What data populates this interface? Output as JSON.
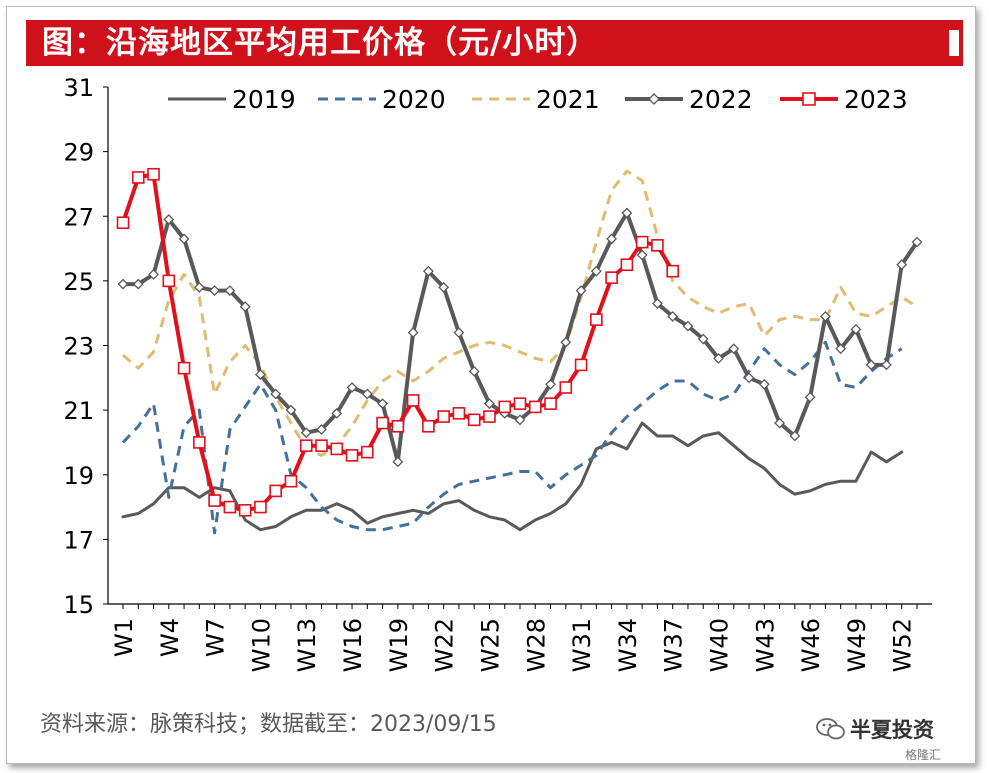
{
  "title": "图：沿海地区平均用工价格（元/小时）",
  "source": "资料来源：脉策科技；数据截至：2023/09/15",
  "watermark": {
    "brand": "半夏投资",
    "sub": "格隆汇"
  },
  "chart_data": {
    "type": "line",
    "title": "图：沿海地区平均用工价格（元/小时）",
    "ylim": [
      15,
      31
    ],
    "yticks": [
      15,
      17,
      19,
      21,
      23,
      25,
      27,
      29,
      31
    ],
    "x": [
      1,
      2,
      3,
      4,
      5,
      6,
      7,
      8,
      9,
      10,
      11,
      12,
      13,
      14,
      15,
      16,
      17,
      18,
      19,
      20,
      21,
      22,
      23,
      24,
      25,
      26,
      27,
      28,
      29,
      30,
      31,
      32,
      33,
      34,
      35,
      36,
      37,
      38,
      39,
      40,
      41,
      42,
      43,
      44,
      45,
      46,
      47,
      48,
      49,
      50,
      51,
      52,
      53
    ],
    "xticks": [
      "W1",
      "W4",
      "W7",
      "W10",
      "W13",
      "W16",
      "W19",
      "W22",
      "W25",
      "W28",
      "W31",
      "W34",
      "W37",
      "W40",
      "W43",
      "W46",
      "W49",
      "W52"
    ],
    "xtick_positions": [
      1,
      4,
      7,
      10,
      13,
      16,
      19,
      22,
      25,
      28,
      31,
      34,
      37,
      40,
      43,
      46,
      49,
      52
    ],
    "legend_position": "top",
    "series": [
      {
        "name": "2019",
        "color": "#595959",
        "style": "solid",
        "marker": "none",
        "width": 3,
        "values": [
          17.7,
          17.8,
          18.1,
          18.6,
          18.6,
          18.3,
          18.6,
          18.5,
          17.6,
          17.3,
          17.4,
          17.7,
          17.9,
          17.9,
          18.1,
          17.9,
          17.5,
          17.7,
          17.8,
          17.9,
          17.8,
          18.1,
          18.2,
          17.9,
          17.7,
          17.6,
          17.3,
          17.6,
          17.8,
          18.1,
          18.7,
          19.8,
          20.0,
          19.8,
          20.6,
          20.2,
          20.2,
          19.9,
          20.2,
          20.3,
          19.9,
          19.5,
          19.2,
          18.7,
          18.4,
          18.5,
          18.7,
          18.8,
          18.8,
          19.7,
          19.4,
          19.7,
          null
        ]
      },
      {
        "name": "2020",
        "color": "#44709a",
        "style": "dashed",
        "marker": "none",
        "width": 3,
        "values": [
          20.0,
          20.5,
          21.2,
          18.3,
          20.5,
          21.0,
          17.2,
          20.4,
          21.1,
          21.8,
          21.0,
          19.0,
          18.6,
          18.0,
          17.6,
          17.4,
          17.3,
          17.3,
          17.4,
          17.5,
          18.0,
          18.4,
          18.7,
          18.8,
          18.9,
          19.0,
          19.1,
          19.1,
          18.6,
          19.0,
          19.3,
          19.6,
          20.3,
          20.8,
          21.2,
          21.6,
          21.9,
          21.9,
          21.5,
          21.3,
          21.5,
          22.2,
          22.9,
          22.4,
          22.1,
          22.5,
          23.1,
          21.8,
          21.7,
          22.2,
          22.6,
          22.9,
          null
        ]
      },
      {
        "name": "2021",
        "color": "#e2bb72",
        "style": "dashed",
        "marker": "none",
        "width": 3,
        "values": [
          22.7,
          22.3,
          22.8,
          24.4,
          25.2,
          24.5,
          21.5,
          22.5,
          23.0,
          22.4,
          21.4,
          20.6,
          19.8,
          19.6,
          19.9,
          20.5,
          21.3,
          21.9,
          22.2,
          21.9,
          22.2,
          22.6,
          22.8,
          23.0,
          23.1,
          23.0,
          22.8,
          22.6,
          22.5,
          23.0,
          24.5,
          26.2,
          27.8,
          28.4,
          28.1,
          26.4,
          25.0,
          24.5,
          24.2,
          24.0,
          24.2,
          24.3,
          23.3,
          23.8,
          23.9,
          23.8,
          23.8,
          24.8,
          24.0,
          23.9,
          24.2,
          24.5,
          24.2
        ]
      },
      {
        "name": "2022",
        "color": "#595959",
        "style": "solid",
        "marker": "diamond",
        "width": 4,
        "values": [
          24.9,
          24.9,
          25.2,
          26.9,
          26.3,
          24.8,
          24.7,
          24.7,
          24.2,
          22.1,
          21.5,
          21.0,
          20.3,
          20.4,
          20.9,
          21.7,
          21.5,
          21.2,
          19.4,
          23.4,
          25.3,
          24.8,
          23.4,
          22.2,
          21.2,
          20.9,
          20.7,
          21.1,
          21.8,
          23.1,
          24.7,
          25.3,
          26.3,
          27.1,
          25.8,
          24.3,
          23.9,
          23.6,
          23.2,
          22.6,
          22.9,
          22.0,
          21.8,
          20.6,
          20.2,
          21.4,
          23.9,
          22.9,
          23.5,
          22.4,
          22.4,
          25.5,
          26.2
        ]
      },
      {
        "name": "2023",
        "color": "#e20f1c",
        "style": "solid",
        "marker": "square",
        "width": 4,
        "values": [
          26.8,
          28.2,
          28.3,
          25.0,
          22.3,
          20.0,
          18.2,
          18.0,
          17.9,
          18.0,
          18.5,
          18.8,
          19.9,
          19.9,
          19.8,
          19.6,
          19.7,
          20.6,
          20.5,
          21.3,
          20.5,
          20.8,
          20.9,
          20.7,
          20.8,
          21.1,
          21.2,
          21.1,
          21.2,
          21.7,
          22.4,
          23.8,
          25.1,
          25.5,
          26.2,
          26.1,
          25.3,
          null,
          null,
          null,
          null,
          null,
          null,
          null,
          null,
          null,
          null,
          null,
          null,
          null,
          null,
          null,
          null
        ]
      }
    ]
  }
}
